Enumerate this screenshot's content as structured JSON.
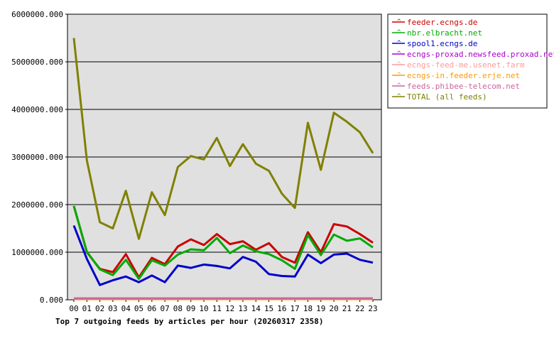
{
  "chart_data": {
    "type": "line",
    "title": "Top 7 outgoing feeds by articles per hour (20260317 2358)",
    "xlabel": "",
    "ylabel": "",
    "x": [
      "00",
      "01",
      "02",
      "03",
      "04",
      "05",
      "06",
      "07",
      "08",
      "09",
      "10",
      "11",
      "12",
      "13",
      "14",
      "15",
      "16",
      "17",
      "18",
      "19",
      "20",
      "21",
      "22",
      "23"
    ],
    "ylim": [
      0,
      6000000
    ],
    "yticks": [
      "0.000",
      "1000000.000",
      "2000000.000",
      "3000000.000",
      "4000000.000",
      "5000000.000",
      "6000000.000"
    ],
    "grid": true,
    "legend_position": "right",
    "series": [
      {
        "name": "feeder.ecngs.de",
        "color": "#cc0000",
        "values": [
          1970000,
          1000000,
          650000,
          580000,
          960000,
          470000,
          880000,
          750000,
          1120000,
          1270000,
          1150000,
          1380000,
          1170000,
          1230000,
          1050000,
          1190000,
          900000,
          780000,
          1420000,
          1000000,
          1590000,
          1540000,
          1380000,
          1200000
        ]
      },
      {
        "name": "nbr.elbracht.net",
        "color": "#00aa00",
        "values": [
          1970000,
          1010000,
          640000,
          520000,
          840000,
          440000,
          830000,
          720000,
          950000,
          1060000,
          1040000,
          1300000,
          980000,
          1140000,
          1020000,
          960000,
          830000,
          650000,
          1360000,
          940000,
          1370000,
          1240000,
          1290000,
          1100000
        ]
      },
      {
        "name": "spool1.ecngs.de",
        "color": "#0000cc",
        "values": [
          1560000,
          860000,
          310000,
          410000,
          490000,
          370000,
          510000,
          370000,
          720000,
          670000,
          740000,
          710000,
          660000,
          900000,
          800000,
          540000,
          500000,
          490000,
          950000,
          770000,
          950000,
          970000,
          840000,
          780000
        ]
      },
      {
        "name": "ecngs-proxad.newsfeed.proxad.net",
        "color": "#aa00cc",
        "values": [
          20000,
          20000,
          20000,
          20000,
          20000,
          20000,
          20000,
          20000,
          20000,
          20000,
          20000,
          20000,
          20000,
          20000,
          20000,
          20000,
          20000,
          20000,
          20000,
          20000,
          20000,
          20000,
          20000,
          20000
        ]
      },
      {
        "name": "ecngs-feed-me.usenet.farm",
        "color": "#ff9999",
        "values": [
          20000,
          20000,
          20000,
          20000,
          20000,
          20000,
          20000,
          20000,
          20000,
          20000,
          20000,
          20000,
          20000,
          20000,
          20000,
          20000,
          20000,
          20000,
          20000,
          20000,
          20000,
          20000,
          20000,
          20000
        ]
      },
      {
        "name": "ecngs-in.feeder.erje.net",
        "color": "#ff9900",
        "values": [
          15000,
          15000,
          15000,
          15000,
          15000,
          15000,
          15000,
          15000,
          15000,
          15000,
          15000,
          15000,
          15000,
          15000,
          15000,
          15000,
          15000,
          15000,
          15000,
          15000,
          15000,
          15000,
          15000,
          15000
        ]
      },
      {
        "name": "feeds.phibee-telecom.net",
        "color": "#cc6699",
        "values": [
          30000,
          30000,
          30000,
          30000,
          30000,
          30000,
          30000,
          30000,
          30000,
          30000,
          30000,
          30000,
          30000,
          30000,
          30000,
          30000,
          30000,
          30000,
          30000,
          30000,
          30000,
          30000,
          30000,
          30000
        ]
      },
      {
        "name": "TOTAL (all feeds)",
        "color": "#808000",
        "values": [
          5500000,
          2930000,
          1630000,
          1500000,
          2290000,
          1280000,
          2260000,
          1780000,
          2790000,
          3020000,
          2950000,
          3400000,
          2810000,
          3270000,
          2860000,
          2710000,
          2230000,
          1930000,
          3720000,
          2730000,
          3930000,
          3740000,
          3520000,
          3080000
        ]
      }
    ]
  }
}
